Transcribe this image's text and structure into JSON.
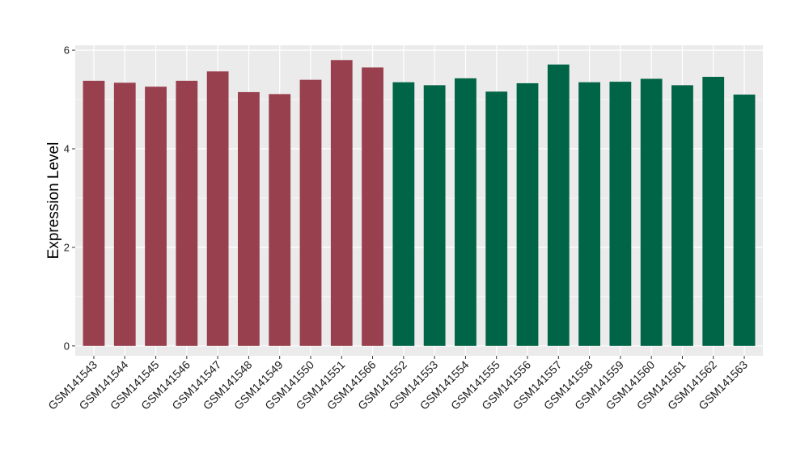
{
  "chart_data": {
    "type": "bar",
    "title": "",
    "xlabel": "",
    "ylabel": "Expression Level",
    "ylim": [
      -0.2,
      6.1
    ],
    "yticks": [
      0,
      2,
      4,
      6
    ],
    "grid": true,
    "legend": "none",
    "panel_background": "#ebebeb",
    "grid_color": "#ffffff",
    "categories": [
      "GSM141543",
      "GSM141544",
      "GSM141545",
      "GSM141546",
      "GSM141547",
      "GSM141548",
      "GSM141549",
      "GSM141550",
      "GSM141551",
      "GSM141566",
      "GSM141552",
      "GSM141553",
      "GSM141554",
      "GSM141555",
      "GSM141556",
      "GSM141557",
      "GSM141558",
      "GSM141559",
      "GSM141560",
      "GSM141561",
      "GSM141562",
      "GSM141563"
    ],
    "values": [
      5.38,
      5.34,
      5.26,
      5.38,
      5.57,
      5.15,
      5.11,
      5.4,
      5.8,
      5.65,
      5.35,
      5.29,
      5.43,
      5.16,
      5.33,
      5.71,
      5.35,
      5.36,
      5.42,
      5.29,
      5.46,
      5.1
    ],
    "bar_colors": [
      "#99404f",
      "#99404f",
      "#99404f",
      "#99404f",
      "#99404f",
      "#99404f",
      "#99404f",
      "#99404f",
      "#99404f",
      "#99404f",
      "#006446",
      "#006446",
      "#006446",
      "#006446",
      "#006446",
      "#006446",
      "#006446",
      "#006446",
      "#006446",
      "#006446",
      "#006446",
      "#006446"
    ]
  }
}
